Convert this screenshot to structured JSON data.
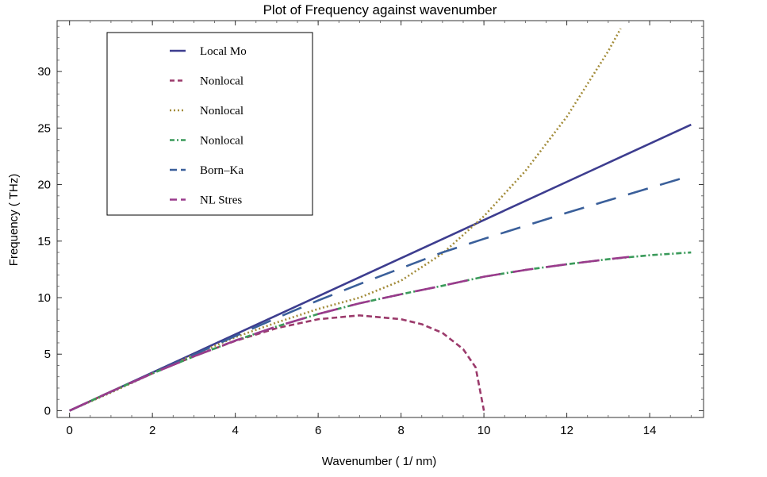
{
  "chart_data": {
    "type": "line",
    "title": "Plot of Frequency against wavenumber",
    "xlabel": "Wavenumber ( 1/ nm)",
    "ylabel": "Frequency ( THz)",
    "xlim": [
      -0.3,
      15.3
    ],
    "ylim": [
      -0.6,
      34.5
    ],
    "xticks": [
      0,
      2,
      4,
      6,
      8,
      10,
      12,
      14
    ],
    "yticks": [
      0,
      5,
      10,
      15,
      20,
      25,
      30
    ],
    "x_minor_step": 0.5,
    "y_minor_step": 1,
    "grid": false,
    "legend_position": "top-left",
    "series": [
      {
        "name": "Local Mo",
        "color": "#3d3d8f",
        "dash": "solid",
        "x": [
          0,
          15
        ],
        "y": [
          0,
          25.3
        ]
      },
      {
        "name": "Nonlocal",
        "color": "#9b3a6b",
        "dash": "short-dash",
        "x": [
          0,
          1,
          2,
          3,
          4,
          5,
          6,
          7,
          8,
          8.5,
          9,
          9.5,
          9.8,
          10
        ],
        "y": [
          0,
          1.69,
          3.3,
          4.81,
          6.17,
          7.3,
          8.09,
          8.43,
          8.09,
          7.65,
          6.88,
          5.44,
          3.83,
          0
        ]
      },
      {
        "name": "Nonlocal",
        "color": "#a38c3a",
        "dash": "dotted",
        "x": [
          0,
          1,
          2,
          3,
          4,
          5,
          6,
          7,
          8,
          9,
          10,
          11,
          12,
          13,
          13.3
        ],
        "y": [
          0,
          1.6,
          3.3,
          4.95,
          6.5,
          7.8,
          9.0,
          10.0,
          11.5,
          13.9,
          17.2,
          21.2,
          26.0,
          31.8,
          33.8
        ]
      },
      {
        "name": "Nonlocal",
        "color": "#3a9a5a",
        "dash": "dash-dot",
        "x": [
          0,
          1,
          2,
          3,
          4,
          5,
          6,
          7,
          8,
          9,
          10,
          11,
          12,
          13,
          14,
          15
        ],
        "y": [
          0,
          1.69,
          3.3,
          4.8,
          6.2,
          7.45,
          8.55,
          9.5,
          10.3,
          11.05,
          11.85,
          12.45,
          12.95,
          13.4,
          13.75,
          14.0
        ]
      },
      {
        "name": "Born–Ka",
        "color": "#3a5f9a",
        "dash": "long-dash",
        "x": [
          0,
          1,
          2,
          3,
          4,
          5,
          6,
          7,
          8,
          9,
          10,
          11,
          12,
          13,
          14,
          15
        ],
        "y": [
          0,
          1.68,
          3.3,
          4.95,
          6.6,
          8.2,
          9.75,
          11.2,
          12.6,
          14.0,
          15.2,
          16.35,
          17.5,
          18.6,
          19.7,
          20.8
        ]
      },
      {
        "name": "NL Stres",
        "color": "#9a3a8c",
        "dash": "long-dash",
        "x": [
          0,
          1,
          2,
          3,
          4,
          5,
          6,
          7,
          8,
          9,
          10,
          11,
          12,
          13,
          13.5
        ],
        "y": [
          0,
          1.69,
          3.3,
          4.8,
          6.2,
          7.45,
          8.55,
          9.5,
          10.3,
          11.05,
          11.85,
          12.45,
          12.95,
          13.4,
          13.6
        ]
      }
    ]
  }
}
